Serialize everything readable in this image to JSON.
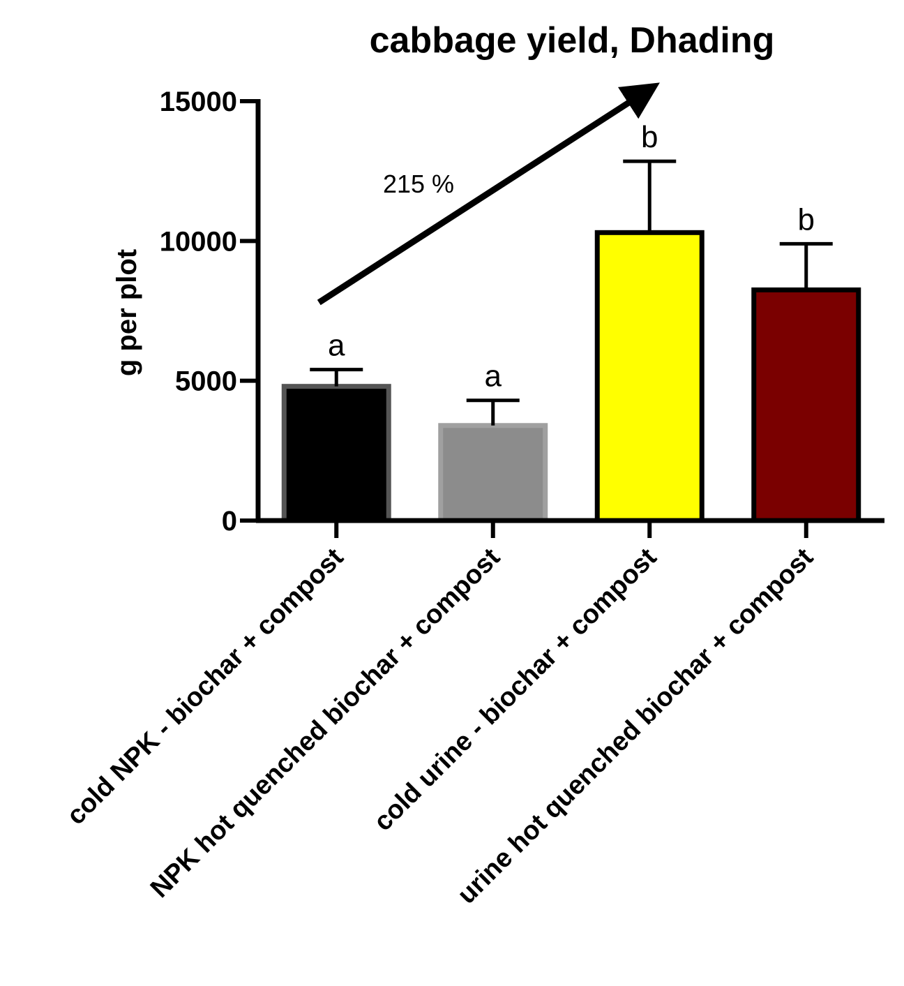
{
  "chart_data": {
    "type": "bar",
    "title": "cabbage yield, Dhading",
    "xlabel": "",
    "ylabel": "g per plot",
    "ylim": [
      0,
      15000
    ],
    "yticks": [
      0,
      5000,
      10000,
      15000
    ],
    "yticks_labels": [
      "0",
      "5000",
      "10000",
      "15000"
    ],
    "categories": [
      "cold NPK - biochar + compost",
      "NPK hot quenched biochar + compost",
      "cold urine - biochar + compost",
      "urine hot quenched biochar + compost"
    ],
    "values": [
      4800,
      3400,
      10300,
      8250
    ],
    "errors": [
      600,
      900,
      2550,
      1650
    ],
    "significance": [
      "a",
      "a",
      "b",
      "b"
    ],
    "bar_fill_colors": [
      "#000000",
      "#8c8c8c",
      "#ffff00",
      "#7a0000"
    ],
    "bar_edge_colors": [
      "#555555",
      "#a0a0a0",
      "#000000",
      "#000000"
    ],
    "annotation": {
      "text": "215 %",
      "arrow_from": {
        "category_index": 0,
        "value": 7800
      },
      "arrow_to": {
        "category_index": 2,
        "value": 15300
      }
    },
    "grid": false,
    "legend": "none"
  }
}
